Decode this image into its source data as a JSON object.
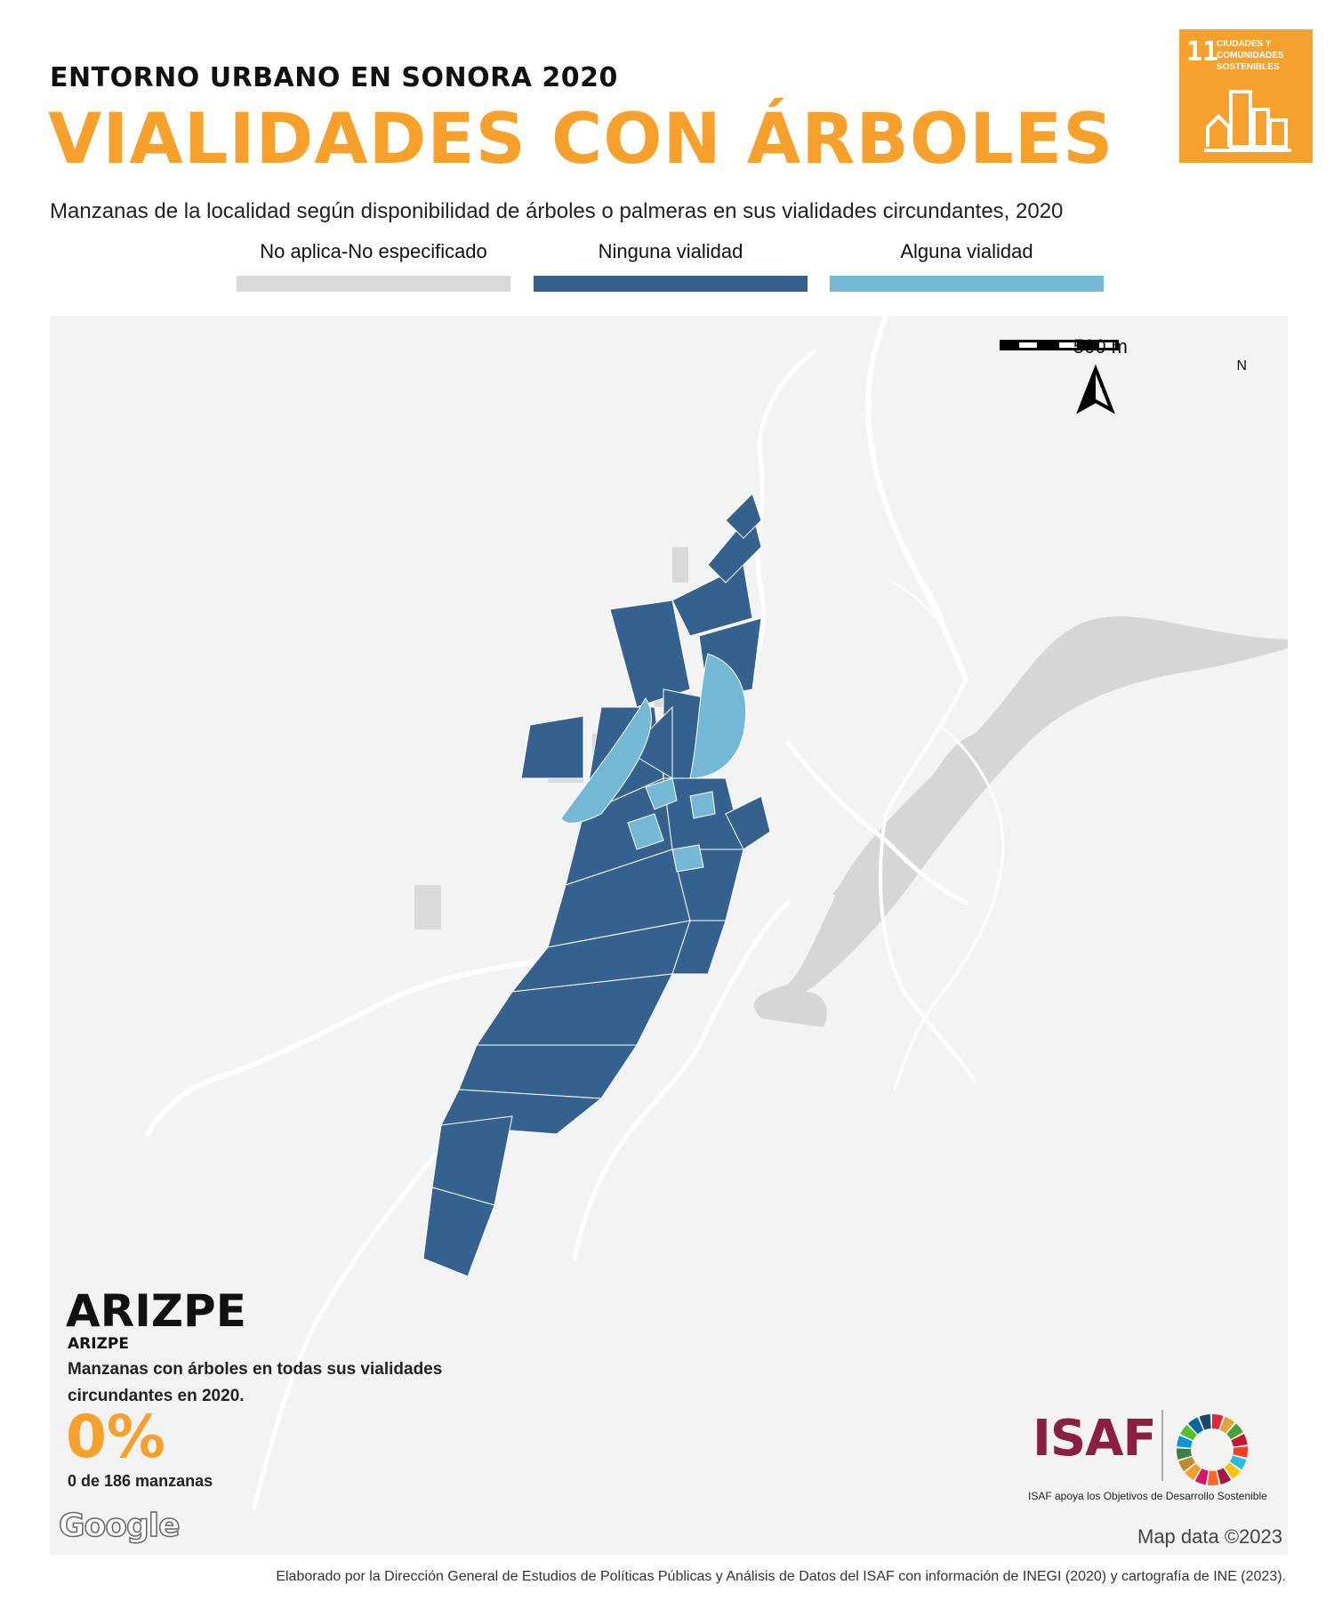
{
  "header": {
    "kicker": "ENTORNO URBANO EN SONORA 2020",
    "title": "VIALIDADES CON ÁRBOLES",
    "subtitle": "Manzanas de la localidad según disponibilidad de árboles o palmeras en sus vialidades circundantes, 2020"
  },
  "sdg_badge": {
    "number": "11",
    "text": "CIUDADES Y COMUNIDADES SOSTENIBLES",
    "color": "#f6a02e"
  },
  "legend": [
    {
      "label": "No aplica-No especificado",
      "color": "#d9d9d9"
    },
    {
      "label": "Ninguna vialidad",
      "color": "#35618f"
    },
    {
      "label": "Alguna vialidad",
      "color": "#73b8d4"
    }
  ],
  "map": {
    "scale_label": "500 m",
    "north_label": "N",
    "background_color": "#f3f3f3",
    "road_color": "#ffffff",
    "terrain_color": "#d6d6d6",
    "provider": "Google",
    "attribution": "Map data ©2023"
  },
  "locality": {
    "name": "ARIZPE",
    "municipality": "ARIZPE",
    "description": "Manzanas con árboles en todas sus vialidades circundantes en 2020.",
    "percentage": "0%",
    "count_text": "0 de 186 manzanas"
  },
  "partner": {
    "logo_text": "ISAF",
    "tagline": "ISAF apoya los Objetivos de Desarrollo Sostenible"
  },
  "footer": {
    "credit": "Elaborado por la Dirección General de Estudios de Políticas Públicas y Análisis de Datos del ISAF con información de INEGI (2020) y cartografía de INE (2023)."
  }
}
